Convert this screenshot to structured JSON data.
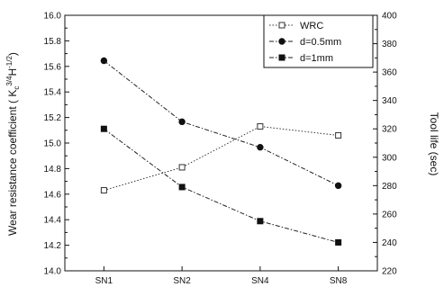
{
  "chart_data": {
    "type": "line",
    "title": "",
    "categories": [
      "SN1",
      "SN2",
      "SN4",
      "SN8"
    ],
    "ylabel_left": "Wear resistance coefficient ( K",
    "ylabel_left_sub": "c",
    "ylabel_left_sup1": "3/4",
    "ylabel_left_mid": "H",
    "ylabel_left_sup2": "-1/2",
    "ylabel_left_end": ")",
    "ylabel_right": "Tool life (sec)",
    "y_left": {
      "min": 14.0,
      "max": 16.0,
      "ticks": [
        "14.0",
        "14.2",
        "14.4",
        "14.6",
        "14.8",
        "15.0",
        "15.2",
        "15.4",
        "15.6",
        "15.8",
        "16.0"
      ]
    },
    "y_right": {
      "min": 220,
      "max": 400,
      "ticks": [
        "220",
        "240",
        "260",
        "280",
        "300",
        "320",
        "340",
        "360",
        "380",
        "400"
      ]
    },
    "legend_position": "top-right",
    "series": [
      {
        "name": "WRC",
        "axis": "left",
        "marker": "open-square",
        "line": "dotted",
        "color": "#333333",
        "values": [
          14.63,
          14.81,
          15.13,
          15.06
        ]
      },
      {
        "name": "d=0.5mm",
        "axis": "right",
        "marker": "filled-circle",
        "line": "dash-dot",
        "color": "#222222",
        "values": [
          368,
          325,
          307,
          280
        ]
      },
      {
        "name": "d=1mm",
        "axis": "right",
        "marker": "filled-square",
        "line": "dash-dot",
        "color": "#222222",
        "values": [
          320,
          279,
          255,
          240
        ]
      }
    ]
  }
}
